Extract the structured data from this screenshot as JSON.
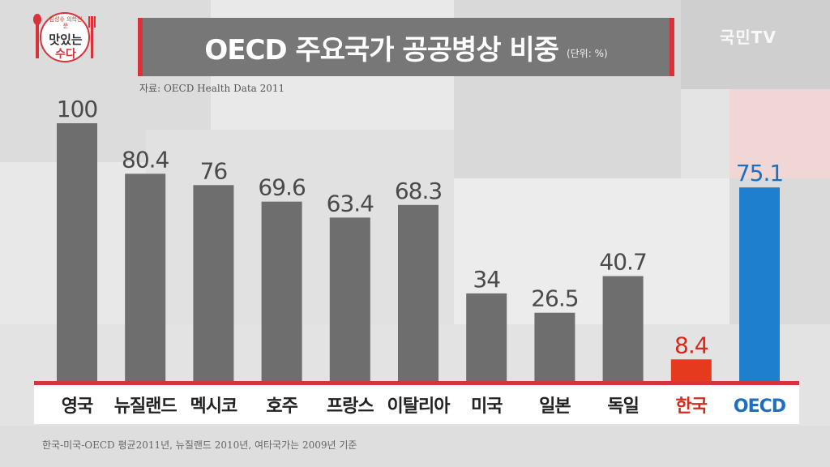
{
  "header": {
    "title": "OECD 주요국가 공공병상 비중",
    "unit": "(단위: %)",
    "source": "자료: OECD Health Data 2011",
    "footnote": "한국-미국-OECD 평균2011년, 뉴질랜드 2010년, 여타국가는 2009년 기준"
  },
  "logo": {
    "top_text": "김성수 의학전문",
    "main_text": "맛있는",
    "sub_text": "수다",
    "icon": "spoon-fork-logo-icon"
  },
  "watermark": "국민TV",
  "colors": {
    "default_bar": "#6e6e6e",
    "korea_bar": "#e63a1e",
    "oecd_bar": "#1f7fcf",
    "default_label": "#222222",
    "korea_label": "#d42b1e",
    "oecd_label": "#1f6fc0",
    "value_text": "#4a4a4a"
  },
  "chart_data": {
    "type": "bar",
    "title": "OECD 주요국가 공공병상 비중",
    "categories": [
      "영국",
      "뉴질랜드",
      "멕시코",
      "호주",
      "프랑스",
      "이탈리아",
      "미국",
      "일본",
      "독일",
      "한국",
      "OECD"
    ],
    "values": [
      100,
      80.4,
      76,
      69.6,
      63.4,
      68.3,
      34,
      26.5,
      40.7,
      8.4,
      75.1
    ],
    "value_labels": [
      "100",
      "80.4",
      "76",
      "69.6",
      "63.4",
      "68.3",
      "34",
      "26.5",
      "40.7",
      "8.4",
      "75.1"
    ],
    "highlight": {
      "한국": "korea",
      "OECD": "oecd"
    },
    "ylim": [
      0,
      100
    ],
    "grid": false,
    "legend": "none"
  }
}
